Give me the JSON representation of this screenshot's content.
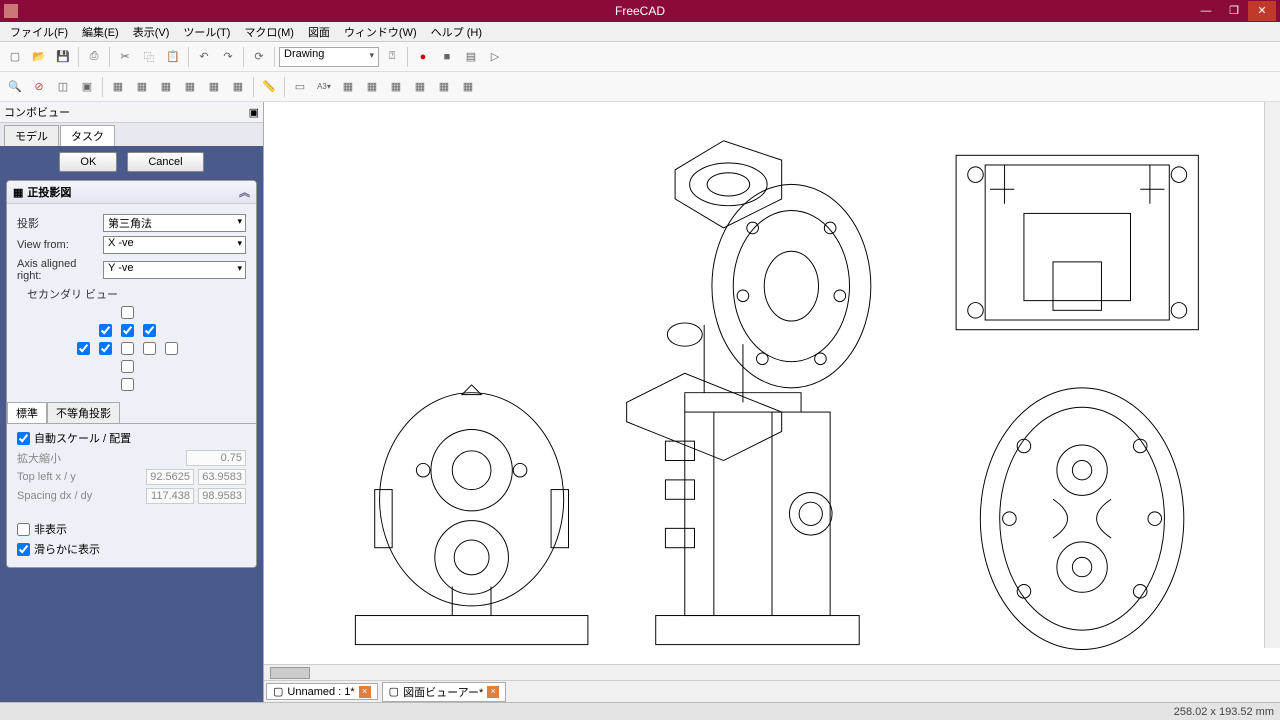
{
  "app": {
    "title": "FreeCAD"
  },
  "menu": [
    "ファイル(F)",
    "編集(E)",
    "表示(V)",
    "ツール(T)",
    "マクロ(M)",
    "図面",
    "ウィンドウ(W)",
    "ヘルプ (H)"
  ],
  "workbench": "Drawing",
  "panel": {
    "title": "コンボビュー",
    "tabs": [
      "モデル",
      "タスク"
    ],
    "active_tab": 1
  },
  "buttons": {
    "ok": "OK",
    "cancel": "Cancel"
  },
  "section": {
    "title": "正投影図"
  },
  "fields": {
    "projection": {
      "label": "投影",
      "value": "第三角法"
    },
    "viewfrom": {
      "label": "View from:",
      "value": "X -ve"
    },
    "axis": {
      "label": "Axis aligned right:",
      "value": "Y -ve"
    },
    "secondary": "セカンダリ ビュー"
  },
  "checks": [
    [
      null,
      null,
      false,
      null,
      null
    ],
    [
      null,
      true,
      true,
      true,
      null
    ],
    [
      true,
      true,
      false,
      false,
      false
    ],
    [
      null,
      null,
      false,
      null,
      null
    ],
    [
      null,
      null,
      false,
      null,
      null
    ]
  ],
  "subtabs": [
    "標準",
    "不等角投影"
  ],
  "auto": {
    "label": "自動スケール / 配置",
    "checked": true
  },
  "nums": {
    "scale": {
      "label": "拡大縮小",
      "v": [
        "0.75"
      ]
    },
    "topleft": {
      "label": "Top left x / y",
      "v": [
        "92.5625",
        "63.9583"
      ]
    },
    "spacing": {
      "label": "Spacing dx / dy",
      "v": [
        "117.438",
        "98.9583"
      ]
    }
  },
  "hide": {
    "label": "非表示",
    "checked": false
  },
  "smooth": {
    "label": "滑らかに表示",
    "checked": true
  },
  "docs": [
    "Unnamed : 1*",
    "図面ビューアー*"
  ],
  "status": "258.02 x 193.52 mm",
  "drawing": {
    "stroke": "#000",
    "stroke_width": 1,
    "bg": "#ffffff"
  }
}
